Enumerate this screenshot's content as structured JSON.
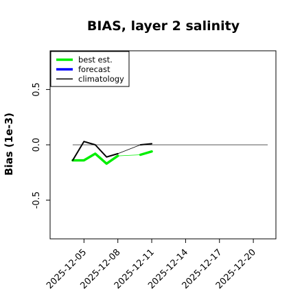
{
  "chart_data": {
    "type": "line",
    "title": "BIAS, layer 2 salinity",
    "ylabel": "Bias (1e-3)",
    "xlabel": "",
    "xlim": [
      "2025-12-02",
      "2025-12-22"
    ],
    "ylim": [
      -0.85,
      0.85
    ],
    "yticks": [
      -0.5,
      0.0,
      0.5
    ],
    "ytick_labels": [
      "-0.5",
      "0.0",
      "0.5"
    ],
    "xticks": [
      "2025-12-05",
      "2025-12-08",
      "2025-12-11",
      "2025-12-14",
      "2025-12-17",
      "2025-12-20"
    ],
    "highlight_xtick": "2025-12-11",
    "highlight_color": "#228B22",
    "reference_line": 0.0,
    "legend_position": "top-left",
    "legend": [
      {
        "label": "best est.",
        "color": "#00ee00"
      },
      {
        "label": "forecast",
        "color": "#0000ff"
      },
      {
        "label": "climatology",
        "color": "#000000"
      }
    ],
    "series": [
      {
        "name": "best est.",
        "color": "#00ee00",
        "segments": [
          {
            "x": [
              "2025-12-04",
              "2025-12-05",
              "2025-12-06",
              "2025-12-07",
              "2025-12-08"
            ],
            "y": [
              -0.14,
              -0.14,
              -0.08,
              -0.17,
              -0.1
            ]
          },
          {
            "x": [
              "2025-12-10",
              "2025-12-11"
            ],
            "y": [
              -0.09,
              -0.06
            ]
          }
        ],
        "connector": {
          "x": [
            "2025-12-08",
            "2025-12-10"
          ],
          "y": [
            -0.1,
            -0.09
          ]
        }
      },
      {
        "name": "climatology",
        "color": "#000000",
        "segments": [
          {
            "x": [
              "2025-12-04",
              "2025-12-05",
              "2025-12-06",
              "2025-12-07",
              "2025-12-08"
            ],
            "y": [
              -0.14,
              0.03,
              0.0,
              -0.11,
              -0.08
            ]
          },
          {
            "x": [
              "2025-12-10",
              "2025-12-11"
            ],
            "y": [
              0.0,
              0.01
            ]
          }
        ],
        "connector": {
          "x": [
            "2025-12-08",
            "2025-12-10"
          ],
          "y": [
            -0.08,
            0.0
          ]
        }
      }
    ]
  }
}
